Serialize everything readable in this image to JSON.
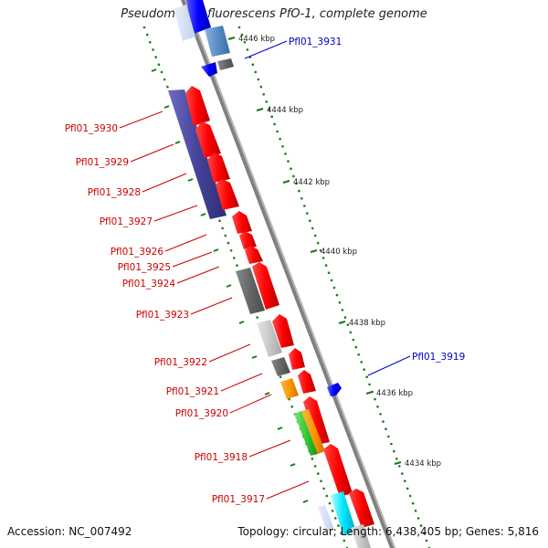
{
  "title": "Pseudomonas fluorescens PfO-1, complete genome",
  "accession": "Accession: NC_007492",
  "topology": "Topology: circular; Length: 6,438,405 bp; Genes: 5,816",
  "colors": {
    "backbone": "#808080",
    "forward_strand": "#ff0000",
    "reverse_strand": "#0000ff",
    "ruler": "#1a7a1a",
    "label_forward": "#cc0000",
    "label_reverse": "#0000cc"
  },
  "ruler_ticks": [
    {
      "label": "4446 kbp"
    },
    {
      "label": "4444 kbp"
    },
    {
      "label": "4442 kbp"
    },
    {
      "label": "4440 kbp"
    },
    {
      "label": "4438 kbp"
    },
    {
      "label": "4436 kbp"
    },
    {
      "label": "4434 kbp"
    }
  ],
  "gene_labels": [
    {
      "name": "Pfl01_3931",
      "strand": "reverse"
    },
    {
      "name": "Pfl01_3930",
      "strand": "forward"
    },
    {
      "name": "Pfl01_3929",
      "strand": "forward"
    },
    {
      "name": "Pfl01_3928",
      "strand": "forward"
    },
    {
      "name": "Pfl01_3927",
      "strand": "forward"
    },
    {
      "name": "Pfl01_3926",
      "strand": "forward"
    },
    {
      "name": "Pfl01_3925",
      "strand": "forward"
    },
    {
      "name": "Pfl01_3924",
      "strand": "forward"
    },
    {
      "name": "Pfl01_3923",
      "strand": "forward"
    },
    {
      "name": "Pfl01_3922",
      "strand": "forward"
    },
    {
      "name": "Pfl01_3921",
      "strand": "forward"
    },
    {
      "name": "Pfl01_3920",
      "strand": "forward"
    },
    {
      "name": "Pfl01_3919",
      "strand": "reverse"
    },
    {
      "name": "Pfl01_3918",
      "strand": "forward"
    },
    {
      "name": "Pfl01_3917",
      "strand": "forward"
    }
  ]
}
